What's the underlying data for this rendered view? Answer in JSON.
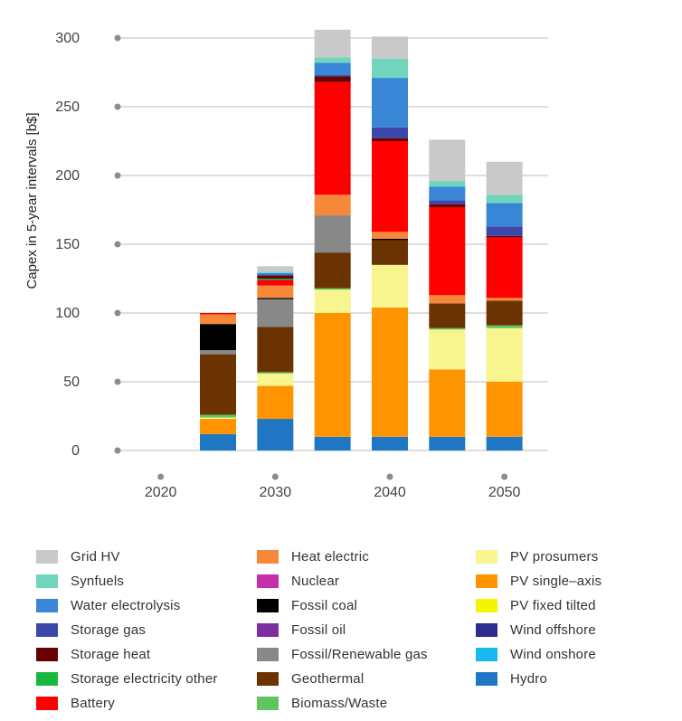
{
  "chart_data": {
    "type": "bar",
    "stacked": true,
    "ylabel": "Capex in 5-year intervals [b$]",
    "xlabel": "",
    "ylim": [
      0,
      300
    ],
    "yticks": [
      0,
      50,
      100,
      150,
      200,
      250,
      300
    ],
    "xticks": [
      "2020",
      "2030",
      "2040",
      "2050"
    ],
    "categories": [
      "2020",
      "2025",
      "2030",
      "2035",
      "2040",
      "2045",
      "2050"
    ],
    "grid": true,
    "legend_position": "bottom",
    "series": [
      {
        "name": "Hydro",
        "color": "#1f77c4",
        "values": [
          0,
          12,
          23,
          10,
          10,
          10,
          10
        ]
      },
      {
        "name": "Wind onshore",
        "color": "#1ab8f0",
        "values": [
          0,
          0,
          0,
          0,
          0,
          0,
          0
        ]
      },
      {
        "name": "Wind offshore",
        "color": "#2e2c8e",
        "values": [
          0,
          0,
          0,
          0,
          0,
          0,
          0
        ]
      },
      {
        "name": "PV fixed tilted",
        "color": "#f5f500",
        "values": [
          0,
          0,
          0,
          0,
          0,
          0,
          0
        ]
      },
      {
        "name": "PV single–axis",
        "color": "#ff9400",
        "values": [
          0,
          11,
          24,
          90,
          94,
          49,
          40
        ]
      },
      {
        "name": "PV prosumers",
        "color": "#f8f48e",
        "values": [
          0,
          1,
          9,
          17,
          31,
          29,
          39
        ]
      },
      {
        "name": "Biomass/Waste",
        "color": "#5fc55f",
        "values": [
          0,
          2,
          1,
          1,
          0,
          1,
          2
        ]
      },
      {
        "name": "Geothermal",
        "color": "#6b3302",
        "values": [
          0,
          44,
          33,
          26,
          18,
          18,
          18
        ]
      },
      {
        "name": "Fossil/Renewable gas",
        "color": "#888888",
        "values": [
          0,
          3,
          20,
          27,
          0,
          0,
          0
        ]
      },
      {
        "name": "Fossil oil",
        "color": "#7b2fa0",
        "values": [
          0,
          0,
          0,
          0,
          0,
          0,
          0
        ]
      },
      {
        "name": "Fossil coal",
        "color": "#000000",
        "values": [
          0,
          19,
          1,
          0,
          1,
          0,
          0
        ]
      },
      {
        "name": "Nuclear",
        "color": "#c42fae",
        "values": [
          0,
          0,
          0,
          0,
          0,
          0,
          0
        ]
      },
      {
        "name": "Heat electric",
        "color": "#f7883a",
        "values": [
          0,
          7,
          9,
          15,
          5,
          6,
          2
        ]
      },
      {
        "name": "Battery",
        "color": "#ff0000",
        "values": [
          0,
          1,
          4,
          82,
          66,
          64,
          44
        ]
      },
      {
        "name": "Storage electricity other",
        "color": "#18b840",
        "values": [
          0,
          0,
          1,
          0,
          0,
          0,
          0
        ]
      },
      {
        "name": "Storage heat",
        "color": "#6b0000",
        "values": [
          0,
          0,
          2,
          4,
          2,
          2,
          1
        ]
      },
      {
        "name": "Storage gas",
        "color": "#3c48a8",
        "values": [
          0,
          0,
          1,
          1,
          8,
          3,
          7
        ]
      },
      {
        "name": "Water electrolysis",
        "color": "#3a86d6",
        "values": [
          0,
          0,
          1,
          9,
          36,
          10,
          17
        ]
      },
      {
        "name": "Synfuels",
        "color": "#6fd5bd",
        "values": [
          0,
          0,
          1,
          4,
          14,
          4,
          6
        ]
      },
      {
        "name": "Grid HV",
        "color": "#c9c9c9",
        "values": [
          0,
          0,
          4,
          20,
          16,
          30,
          24
        ]
      }
    ],
    "legend_columns": [
      [
        "Grid HV",
        "Synfuels",
        "Water electrolysis",
        "Storage gas",
        "Storage heat",
        "Storage electricity other",
        "Battery"
      ],
      [
        "Heat electric",
        "Nuclear",
        "Fossil coal",
        "Fossil oil",
        "Fossil/Renewable gas",
        "Geothermal",
        "Biomass/Waste"
      ],
      [
        "PV prosumers",
        "PV single–axis",
        "PV fixed tilted",
        "Wind offshore",
        "Wind onshore",
        "Hydro"
      ]
    ]
  },
  "colors": {
    "grid": "#bdbdbd",
    "tick_dot": "#8c8c8c",
    "axis_text": "#444444"
  }
}
